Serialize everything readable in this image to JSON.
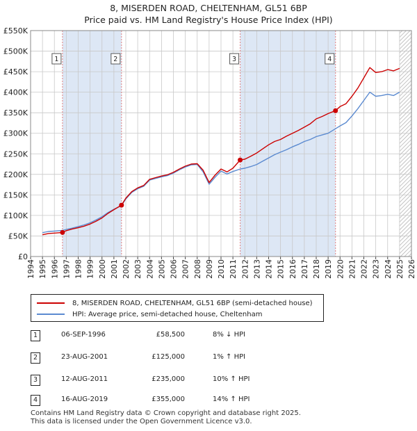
{
  "title": {
    "line1": "8, MISERDEN ROAD, CHELTENHAM, GL51 6BP",
    "line2": "Price paid vs. HM Land Registry's House Price Index (HPI)"
  },
  "legend": {
    "red_label": "8, MISERDEN ROAD, CHELTENHAM, GL51 6BP (semi-detached house)",
    "blue_label": "HPI: Average price, semi-detached house, Cheltenham"
  },
  "colors": {
    "red": "#cc0000",
    "blue": "#5b8ad0",
    "shade": "#dde7f5",
    "grid": "#c8c8c8",
    "marker_dash": "#e08080"
  },
  "sales": [
    {
      "n": "1",
      "date": "06-SEP-1996",
      "price": "£58,500",
      "hpi": "8% ↓ HPI"
    },
    {
      "n": "2",
      "date": "23-AUG-2001",
      "price": "£125,000",
      "hpi": "1% ↑ HPI"
    },
    {
      "n": "3",
      "date": "12-AUG-2011",
      "price": "£235,000",
      "hpi": "10% ↑ HPI"
    },
    {
      "n": "4",
      "date": "16-AUG-2019",
      "price": "£355,000",
      "hpi": "14% ↑ HPI"
    }
  ],
  "footer": {
    "line1": "Contains HM Land Registry data © Crown copyright and database right 2025.",
    "line2": "This data is licensed under the Open Government Licence v3.0."
  },
  "chart_data": {
    "type": "line",
    "title": "8, MISERDEN ROAD, CHELTENHAM, GL51 6BP",
    "subtitle": "Price paid vs. HM Land Registry's House Price Index (HPI)",
    "xlabel": "",
    "ylabel": "",
    "xlim": [
      1994,
      2026
    ],
    "ylim": [
      0,
      550000
    ],
    "x_ticks": [
      "1994",
      "1995",
      "1996",
      "1997",
      "1998",
      "1999",
      "2000",
      "2001",
      "2002",
      "2003",
      "2004",
      "2005",
      "2006",
      "2007",
      "2008",
      "2009",
      "2010",
      "2011",
      "2012",
      "2013",
      "2014",
      "2015",
      "2016",
      "2017",
      "2018",
      "2019",
      "2020",
      "2021",
      "2022",
      "2023",
      "2024",
      "2025",
      "2026"
    ],
    "y_ticks": [
      {
        "v": 0,
        "label": "£0"
      },
      {
        "v": 50000,
        "label": "£50K"
      },
      {
        "v": 100000,
        "label": "£100K"
      },
      {
        "v": 150000,
        "label": "£150K"
      },
      {
        "v": 200000,
        "label": "£200K"
      },
      {
        "v": 250000,
        "label": "£250K"
      },
      {
        "v": 300000,
        "label": "£300K"
      },
      {
        "v": 350000,
        "label": "£350K"
      },
      {
        "v": 400000,
        "label": "£400K"
      },
      {
        "v": 450000,
        "label": "£450K"
      },
      {
        "v": 500000,
        "label": "£500K"
      },
      {
        "v": 550000,
        "label": "£550K"
      }
    ],
    "grid": true,
    "shaded_ranges": [
      [
        1996.68,
        2001.64
      ],
      [
        2011.61,
        2019.62
      ]
    ],
    "hatched_range": [
      2025.0,
      2026.0
    ],
    "series": [
      {
        "name": "8, MISERDEN ROAD, CHELTENHAM, GL51 6BP (semi-detached house)",
        "color": "#cc0000",
        "x": [
          1995.0,
          1995.5,
          1996.0,
          1996.68,
          1997.0,
          1997.5,
          1998.0,
          1998.5,
          1999.0,
          1999.5,
          2000.0,
          2000.5,
          2001.0,
          2001.64,
          2002.0,
          2002.5,
          2003.0,
          2003.5,
          2004.0,
          2004.5,
          2005.0,
          2005.5,
          2006.0,
          2006.5,
          2007.0,
          2007.5,
          2008.0,
          2008.5,
          2009.0,
          2009.5,
          2010.0,
          2010.5,
          2011.0,
          2011.61,
          2012.0,
          2012.5,
          2013.0,
          2013.5,
          2014.0,
          2014.5,
          2015.0,
          2015.5,
          2016.0,
          2016.5,
          2017.0,
          2017.5,
          2018.0,
          2018.5,
          2019.0,
          2019.62,
          2020.0,
          2020.5,
          2021.0,
          2021.5,
          2022.0,
          2022.5,
          2023.0,
          2023.5,
          2024.0,
          2024.5,
          2025.0
        ],
        "values": [
          53000,
          56000,
          57000,
          58500,
          63000,
          67000,
          70000,
          74000,
          79000,
          86000,
          94000,
          105000,
          114000,
          125000,
          142000,
          158000,
          167000,
          173000,
          188000,
          192000,
          196000,
          199000,
          205000,
          213000,
          220000,
          225000,
          226000,
          210000,
          180000,
          198000,
          213000,
          206000,
          215000,
          235000,
          237000,
          244000,
          252000,
          262000,
          272000,
          280000,
          285000,
          293000,
          300000,
          307000,
          315000,
          323000,
          335000,
          341000,
          348000,
          355000,
          365000,
          372000,
          390000,
          410000,
          435000,
          460000,
          448000,
          450000,
          455000,
          452000,
          458000
        ]
      },
      {
        "name": "HPI: Average price, semi-detached house, Cheltenham",
        "color": "#5b8ad0",
        "x": [
          1995.0,
          1995.5,
          1996.0,
          1996.68,
          1997.0,
          1997.5,
          1998.0,
          1998.5,
          1999.0,
          1999.5,
          2000.0,
          2000.5,
          2001.0,
          2001.64,
          2002.0,
          2002.5,
          2003.0,
          2003.5,
          2004.0,
          2004.5,
          2005.0,
          2005.5,
          2006.0,
          2006.5,
          2007.0,
          2007.5,
          2008.0,
          2008.5,
          2009.0,
          2009.5,
          2010.0,
          2010.5,
          2011.0,
          2011.61,
          2012.0,
          2012.5,
          2013.0,
          2013.5,
          2014.0,
          2014.5,
          2015.0,
          2015.5,
          2016.0,
          2016.5,
          2017.0,
          2017.5,
          2018.0,
          2018.5,
          2019.0,
          2019.62,
          2020.0,
          2020.5,
          2021.0,
          2021.5,
          2022.0,
          2022.5,
          2023.0,
          2023.5,
          2024.0,
          2024.5,
          2025.0
        ],
        "values": [
          58000,
          61000,
          62000,
          63500,
          66000,
          69000,
          73000,
          77000,
          82000,
          89000,
          97000,
          107000,
          115000,
          124000,
          140000,
          156000,
          165000,
          171000,
          186000,
          190000,
          194000,
          197000,
          203000,
          211000,
          218000,
          223000,
          224000,
          206000,
          176000,
          193000,
          208000,
          201000,
          207000,
          213000,
          215000,
          219000,
          224000,
          232000,
          240000,
          248000,
          254000,
          260000,
          267000,
          273000,
          280000,
          285000,
          292000,
          296000,
          300000,
          311000,
          318000,
          326000,
          342000,
          360000,
          380000,
          400000,
          390000,
          392000,
          395000,
          392000,
          400000
        ]
      }
    ],
    "sale_markers": [
      {
        "n": "1",
        "x": 1996.68,
        "y": 58500
      },
      {
        "n": "2",
        "x": 2001.64,
        "y": 125000
      },
      {
        "n": "3",
        "x": 2011.61,
        "y": 235000
      },
      {
        "n": "4",
        "x": 2019.62,
        "y": 355000
      }
    ]
  }
}
